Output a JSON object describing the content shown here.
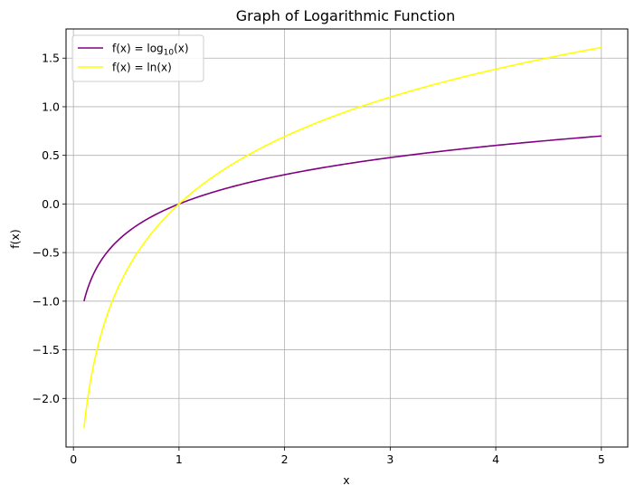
{
  "chart_data": {
    "type": "line",
    "title": "Graph of Logarithmic Function",
    "xlabel": "x",
    "ylabel": "f(x)",
    "xlim": [
      -0.07,
      5.25
    ],
    "ylim": [
      -2.5,
      1.8
    ],
    "xticks": [
      0,
      1,
      2,
      3,
      4,
      5
    ],
    "xtick_labels": [
      "0",
      "1",
      "2",
      "3",
      "4",
      "5"
    ],
    "yticks": [
      -2.0,
      -1.5,
      -1.0,
      -0.5,
      0.0,
      0.5,
      1.0,
      1.5
    ],
    "ytick_labels": [
      "−2.0",
      "−1.5",
      "−1.0",
      "−0.5",
      "0.0",
      "0.5",
      "1.0",
      "1.5"
    ],
    "grid": true,
    "legend_position": "top-left",
    "series": [
      {
        "name": "f(x) = log10(x)",
        "legend": {
          "prefix": "f(x) = log",
          "sub": "10",
          "suffix": "(x)"
        },
        "function": "log10",
        "color": "#800080",
        "x": [
          0.1,
          0.2,
          0.3,
          0.5,
          0.75,
          1.0,
          1.5,
          2.0,
          2.5,
          3.0,
          3.5,
          4.0,
          4.5,
          5.0
        ],
        "y": [
          -1.0,
          -0.699,
          -0.523,
          -0.301,
          -0.125,
          0.0,
          0.176,
          0.301,
          0.398,
          0.477,
          0.544,
          0.602,
          0.653,
          0.699
        ]
      },
      {
        "name": "f(x) = ln(x)",
        "legend": {
          "prefix": "f(x) = ln(x)",
          "sub": "",
          "suffix": ""
        },
        "function": "ln",
        "color": "#ffff00",
        "x": [
          0.1,
          0.2,
          0.3,
          0.5,
          0.75,
          1.0,
          1.5,
          2.0,
          2.5,
          3.0,
          3.5,
          4.0,
          4.5,
          5.0
        ],
        "y": [
          -2.303,
          -1.609,
          -1.204,
          -0.693,
          -0.288,
          0.0,
          0.405,
          0.693,
          0.916,
          1.099,
          1.253,
          1.386,
          1.504,
          1.609
        ]
      }
    ]
  }
}
